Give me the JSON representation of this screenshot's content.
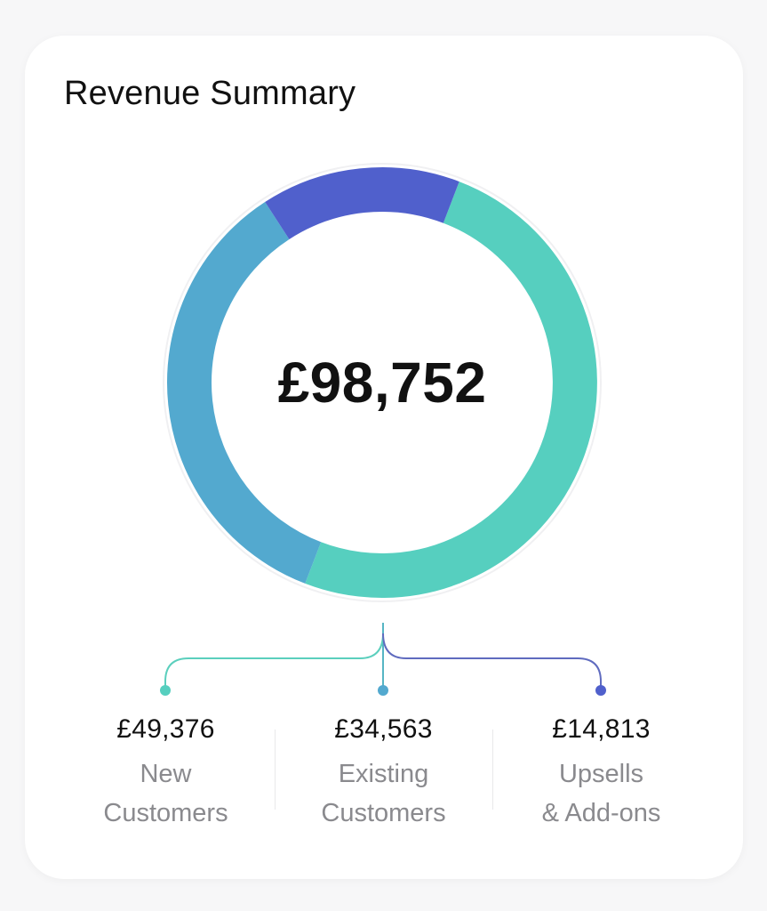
{
  "card": {
    "title": "Revenue Summary",
    "total": "£98,752"
  },
  "chart_data": {
    "type": "pie",
    "title": "Revenue Summary",
    "total": 98752,
    "currency": "GBP",
    "categories": [
      "New Customers",
      "Existing Customers",
      "Upsells & Add-ons"
    ],
    "values": [
      49376,
      34563,
      14813
    ],
    "colors": [
      "#56cfbf",
      "#53a9cf",
      "#5060cc"
    ],
    "legend": [
      {
        "value": "£49,376",
        "line1": "New",
        "line2": "Customers",
        "dot": "#56cfbf"
      },
      {
        "value": "£34,563",
        "line1": "Existing",
        "line2": "Customers",
        "dot": "#53a9cf"
      },
      {
        "value": "£14,813",
        "line1": "Upsells",
        "line2": "& Add-ons",
        "dot": "#5060cc"
      }
    ]
  }
}
